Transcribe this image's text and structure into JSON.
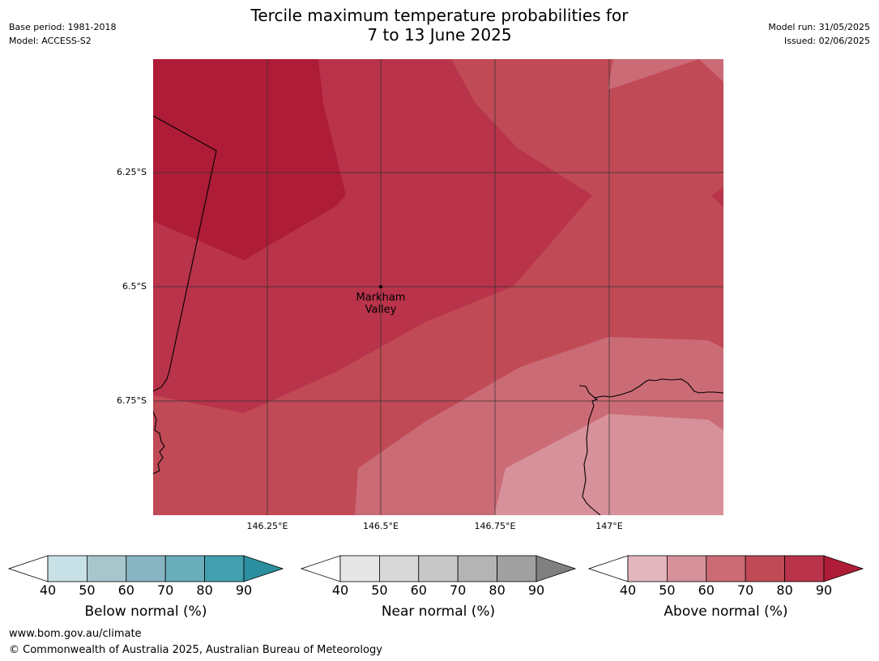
{
  "header": {
    "title_line1": "Tercile maximum temperature probabilities for",
    "title_line2": "7 to 13 June 2025",
    "base_period": "Base period: 1981-2018",
    "model": "Model: ACCESS-S2",
    "model_run": "Model run: 31/05/2025",
    "issued": "Issued: 02/06/2025"
  },
  "map": {
    "lat_labels": [
      "6.25°S",
      "6.5°S",
      "6.75°S"
    ],
    "lon_labels": [
      "146.25°E",
      "146.5°E",
      "146.75°E",
      "147°E"
    ],
    "place": {
      "name_line1": "Markham",
      "name_line2": "Valley"
    },
    "shading_category": "Above normal (%)"
  },
  "legends": [
    {
      "title": "Below normal (%)",
      "ticks": [
        "40",
        "50",
        "60",
        "70",
        "80",
        "90"
      ],
      "colors": [
        "#ffffff",
        "#c8e1e6",
        "#a6c6cc",
        "#88b5c2",
        "#6aaebc",
        "#449fae",
        "#2b8fa0"
      ]
    },
    {
      "title": "Near normal (%)",
      "ticks": [
        "40",
        "50",
        "60",
        "70",
        "80",
        "90"
      ],
      "colors": [
        "#ffffff",
        "#e6e6e6",
        "#d8d8d8",
        "#c8c8c8",
        "#b4b4b4",
        "#a0a0a0",
        "#808080"
      ]
    },
    {
      "title": "Above normal (%)",
      "ticks": [
        "40",
        "50",
        "60",
        "70",
        "80",
        "90"
      ],
      "colors": [
        "#ffffff",
        "#e3b6bd",
        "#d7919a",
        "#cb6b76",
        "#c04a56",
        "#b9334a",
        "#ae1c37"
      ]
    }
  ],
  "footer": {
    "url": "www.bom.gov.au/climate",
    "copyright": "© Commonwealth of Australia 2025, Australian Bureau of Meteorology"
  }
}
